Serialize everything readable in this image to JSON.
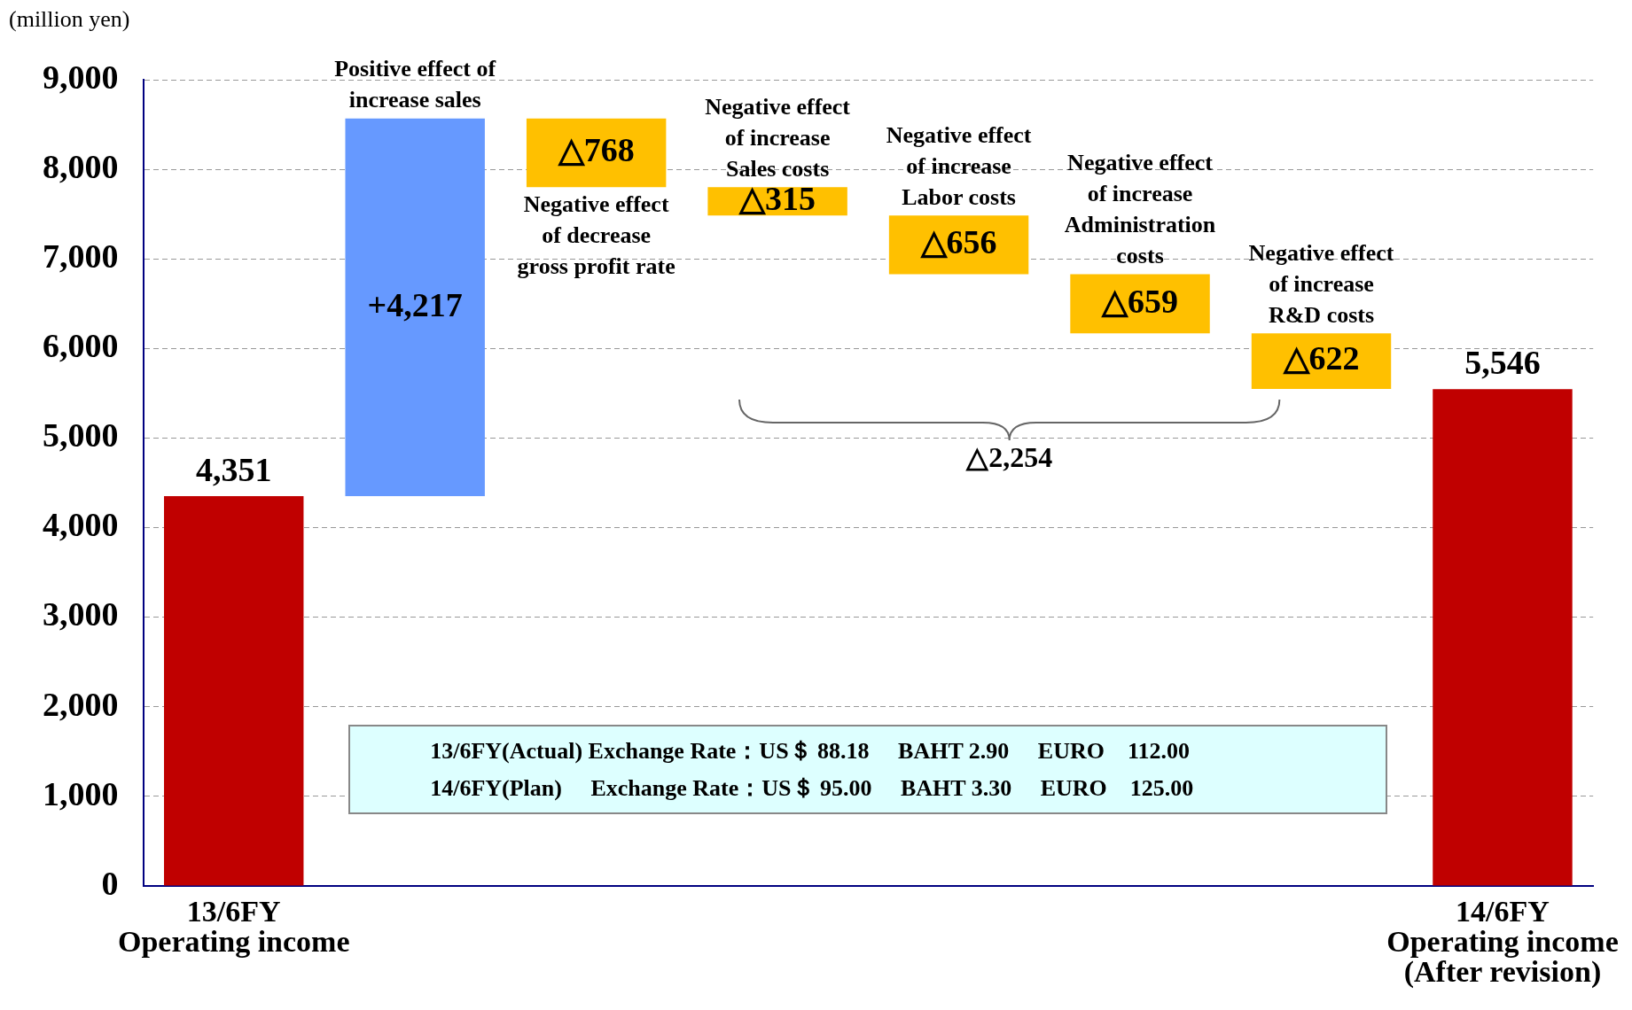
{
  "chart_data": {
    "type": "bar",
    "ylabel": "(million yen)",
    "categories": [
      "13/6FY\nOperating income",
      "Positive effect of\nincrease sales",
      "Negative effect\nof decrease\ngross profit rate",
      "Negative effect\nof increase\nSales costs",
      "Negative effect\nof increase\nLabor costs",
      "Negative effect\nof increase\nAdministration\ncosts",
      "Negative effect\nof increase\nR&D costs",
      "14/6FY\nOperating income\n(After revision)"
    ],
    "values": [
      4351,
      4217,
      -768,
      -315,
      -656,
      -659,
      -622,
      5546
    ],
    "base": [
      0,
      4351,
      8568,
      7800,
      7485,
      6829,
      6170,
      0
    ],
    "colors": [
      "#c00000",
      "#6699ff",
      "#ffc000",
      "#ffc000",
      "#ffc000",
      "#ffc000",
      "#ffc000",
      "#c00000"
    ],
    "value_labels": [
      "4,351",
      "+4,217",
      "△768",
      "△315",
      "△656",
      "△659",
      "△622",
      "5,546"
    ],
    "ylim": [
      0,
      9000
    ],
    "yticks": [
      {
        "value": 0,
        "label": "0"
      },
      {
        "value": 1000,
        "label": "1,000"
      },
      {
        "value": 2000,
        "label": "2,000"
      },
      {
        "value": 3000,
        "label": "3,000"
      },
      {
        "value": 4000,
        "label": "4,000"
      },
      {
        "value": 5000,
        "label": "5,000"
      },
      {
        "value": 6000,
        "label": "6,000"
      },
      {
        "value": 7000,
        "label": "7,000"
      },
      {
        "value": 8000,
        "label": "8,000"
      },
      {
        "value": 9000,
        "label": "9,000"
      }
    ],
    "grid": "y",
    "legend": false,
    "annotations": [
      "△2,254",
      "13/6FY(Actual) Exchange Rate：US＄ 88.18　 BAHT 2.90　 EURO　112.00",
      "14/6FY(Plan)　 Exchange Rate：US＄ 95.00　 BAHT 3.30　 EURO　125.00"
    ]
  }
}
